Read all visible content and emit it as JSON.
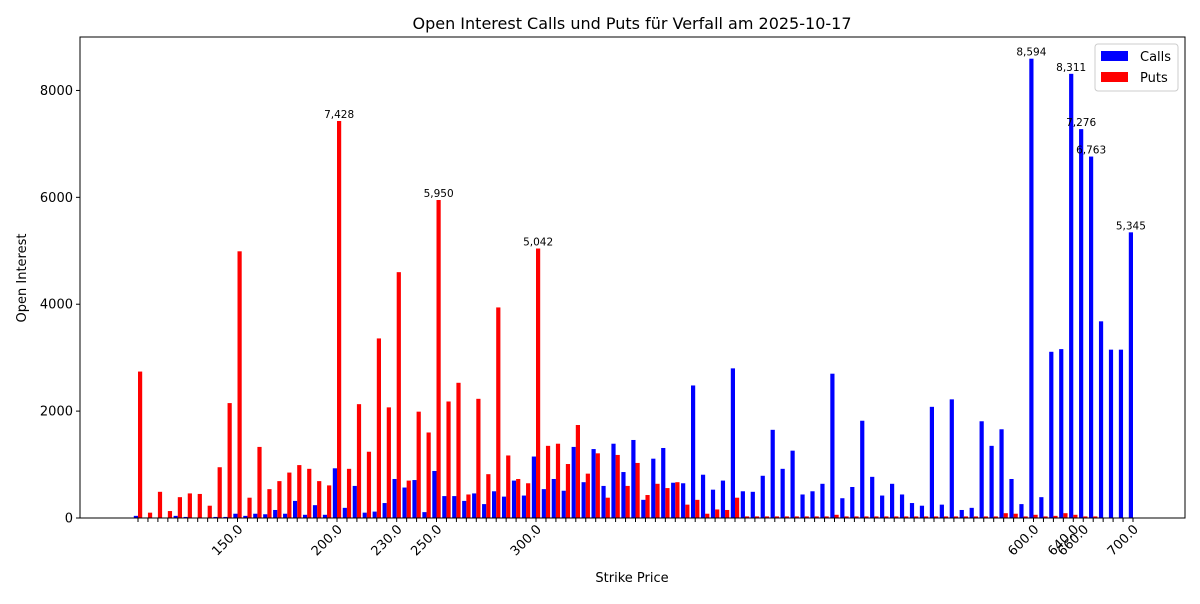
{
  "chart_data": {
    "type": "bar",
    "title": "Open Interest Calls und Puts für Verfall am 2025-10-17",
    "xlabel": "Strike Price",
    "ylabel": "Open Interest",
    "ylim": [
      0,
      9000
    ],
    "yticks": [
      "0",
      "2000",
      "4000",
      "6000",
      "8000"
    ],
    "grid": false,
    "legend_position": "top-right",
    "colors": {
      "calls": "#0000ff",
      "puts": "#ff0000"
    },
    "tick_labels": [
      {
        "index": 10,
        "label": "150.0"
      },
      {
        "index": 20,
        "label": "200.0"
      },
      {
        "index": 26,
        "label": "230.0"
      },
      {
        "index": 30,
        "label": "250.0"
      },
      {
        "index": 40,
        "label": "300.0"
      },
      {
        "index": 90,
        "label": "600.0"
      },
      {
        "index": 94,
        "label": "640.0"
      },
      {
        "index": 95,
        "label": "660.0"
      },
      {
        "index": 100,
        "label": "700.0"
      }
    ],
    "series": [
      {
        "name": "Calls",
        "values": [
          40,
          10,
          0,
          0,
          40,
          20,
          0,
          0,
          20,
          20,
          80,
          40,
          80,
          70,
          150,
          80,
          320,
          60,
          240,
          60,
          930,
          190,
          600,
          100,
          120,
          280,
          730,
          570,
          710,
          110,
          880,
          410,
          410,
          320,
          460,
          260,
          500,
          400,
          700,
          420,
          1150,
          540,
          730,
          510,
          1330,
          670,
          1290,
          600,
          1390,
          860,
          1460,
          340,
          1110,
          1310,
          660,
          650,
          2480,
          810,
          530,
          700,
          2800,
          500,
          490,
          790,
          1650,
          920,
          1260,
          440,
          500,
          640,
          2700,
          370,
          580,
          1820,
          770,
          420,
          640,
          440,
          280,
          230,
          2080,
          250,
          2220,
          150,
          190,
          1810,
          1350,
          1660,
          730,
          260,
          8594,
          390,
          3110,
          3160,
          8311,
          7276,
          6763,
          3680,
          3150,
          3150,
          5345
        ]
      },
      {
        "name": "Puts",
        "values": [
          2740,
          100,
          490,
          130,
          390,
          460,
          450,
          230,
          950,
          2150,
          4990,
          380,
          1330,
          540,
          690,
          850,
          990,
          920,
          690,
          610,
          7428,
          920,
          2130,
          1240,
          3360,
          2070,
          4600,
          700,
          1990,
          1600,
          5950,
          2180,
          2530,
          440,
          2230,
          820,
          3940,
          1170,
          730,
          650,
          5042,
          1350,
          1390,
          1010,
          1740,
          830,
          1210,
          380,
          1180,
          600,
          1030,
          430,
          640,
          560,
          670,
          250,
          340,
          80,
          160,
          150,
          380,
          30,
          30,
          30,
          30,
          30,
          30,
          30,
          30,
          30,
          60,
          30,
          30,
          30,
          30,
          30,
          30,
          30,
          30,
          30,
          30,
          30,
          30,
          30,
          30,
          30,
          30,
          90,
          80,
          30,
          60,
          30,
          40,
          90,
          60,
          30,
          30,
          0,
          0,
          0,
          0
        ]
      }
    ],
    "annotations": [
      {
        "index": 20,
        "text": "7,428"
      },
      {
        "index": 30,
        "text": "5,950"
      },
      {
        "index": 40,
        "text": "5,042"
      },
      {
        "index": 90,
        "text": "8,594"
      },
      {
        "index": 94,
        "text": "8,311"
      },
      {
        "index": 95,
        "text": "7,276"
      },
      {
        "index": 96,
        "text": "6,763"
      },
      {
        "index": 100,
        "text": "5,345"
      }
    ]
  }
}
